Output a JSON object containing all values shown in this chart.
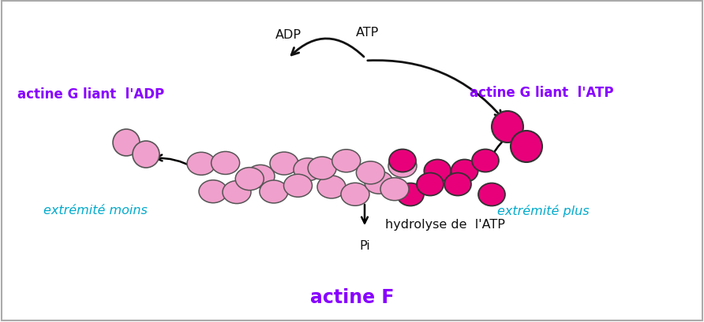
{
  "background_color": "#ffffff",
  "border_color": "#aaaaaa",
  "pink_light": "#F0A0CC",
  "pink_dark": "#E8007A",
  "purple_text": "#8800FF",
  "cyan_text": "#00AACC",
  "black_text": "#111111",
  "title": "actine F",
  "label_adp": "actine G liant  l'ADP",
  "label_atp_g": "actine G liant  l'ATP",
  "label_ext_moins": "extrémité moins",
  "label_ext_plus": "extrémité plus",
  "label_ADP": "ADP",
  "label_ATP": "ATP",
  "label_Pi": "Pi",
  "label_hydrolyse": "hydrolyse de  l'ATP",
  "figsize": [
    8.92,
    4.1
  ],
  "dpi": 100
}
